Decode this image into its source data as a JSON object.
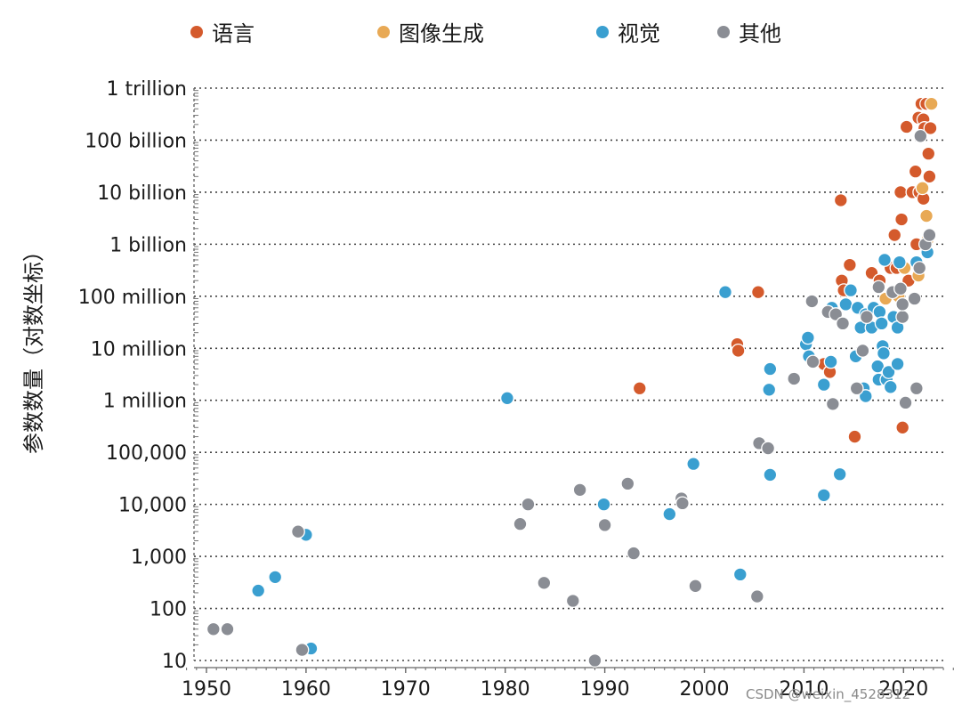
{
  "chart_data": {
    "type": "scatter",
    "title": "",
    "xlabel": "",
    "ylabel": "参数数量（对数坐标）",
    "x_scale": "linear",
    "y_scale": "log",
    "xlim": [
      1948,
      2025
    ],
    "ylim": [
      10,
      1000000000000
    ],
    "x_ticks": [
      1950,
      1960,
      1970,
      1980,
      1990,
      2000,
      2010,
      2020
    ],
    "x_tick_labels": [
      "1950",
      "1960",
      "1970",
      "1980",
      "1990",
      "2000",
      "2010",
      "2020"
    ],
    "y_ticks": [
      10,
      100,
      1000,
      10000,
      100000,
      1000000,
      10000000,
      100000000,
      1000000000,
      10000000000,
      100000000000,
      1000000000000
    ],
    "y_tick_labels": [
      "10",
      "100",
      "1,000",
      "10,000",
      "100,000",
      "1 million",
      "10 million",
      "100 million",
      "1 billion",
      "10 billion",
      "100 billion",
      "1 trillion"
    ],
    "grid": "horizontal-dotted",
    "legend_position": "top",
    "series": [
      {
        "name": "语言",
        "color": "#d45a2c",
        "points": [
          [
            1993.5,
            1700000
          ],
          [
            2003.3,
            12000000
          ],
          [
            2003.4,
            9000000
          ],
          [
            2005.4,
            120000000
          ],
          [
            2012,
            5000000
          ],
          [
            2012.6,
            3500000
          ],
          [
            2013.7,
            7000000000
          ],
          [
            2013.8,
            200000000
          ],
          [
            2014,
            130000000
          ],
          [
            2014.6,
            400000000
          ],
          [
            2015.1,
            200000
          ],
          [
            2016.8,
            280000000
          ],
          [
            2017.6,
            200000000
          ],
          [
            2018.7,
            350000000
          ],
          [
            2019.1,
            1500000000
          ],
          [
            2019.3,
            350000000
          ],
          [
            2019.7,
            10000000000
          ],
          [
            2019.8,
            3000000000
          ],
          [
            2019.9,
            300000
          ],
          [
            2020.3,
            180000000000
          ],
          [
            2020.5,
            200000000
          ],
          [
            2020.9,
            10000000000
          ],
          [
            2021.2,
            25000000000
          ],
          [
            2021.3,
            1000000000
          ],
          [
            2021.5,
            270000000000
          ],
          [
            2021.6,
            10000000000
          ],
          [
            2021.8,
            500000000000
          ],
          [
            2022,
            7500000000
          ],
          [
            2022,
            250000000000
          ],
          [
            2022.1,
            170000000000
          ],
          [
            2022.3,
            500000000000
          ],
          [
            2022.5,
            55000000000
          ],
          [
            2022.6,
            20000000000
          ],
          [
            2022.7,
            170000000000
          ]
        ]
      },
      {
        "name": "图像生成",
        "color": "#e8a955",
        "points": [
          [
            2018.2,
            90000000
          ],
          [
            2019.5,
            100000000
          ],
          [
            2020.1,
            350000000
          ],
          [
            2021.5,
            250000000
          ],
          [
            2021.9,
            12000000000
          ],
          [
            2022.3,
            3500000000
          ],
          [
            2022.4,
            1200000000
          ],
          [
            2022.8,
            500000000000
          ]
        ]
      },
      {
        "name": "视觉",
        "color": "#3a9fd0",
        "points": [
          [
            1955.2,
            220
          ],
          [
            1956.9,
            400
          ],
          [
            1960,
            2600
          ],
          [
            1960.5,
            17
          ],
          [
            1980.2,
            1100000
          ],
          [
            1989.9,
            10000
          ],
          [
            1996.5,
            6500
          ],
          [
            1998.9,
            60000
          ],
          [
            2002.1,
            120000000
          ],
          [
            2003.6,
            450
          ],
          [
            2006.5,
            1600000
          ],
          [
            2006.6,
            4000000
          ],
          [
            2006.6,
            37000
          ],
          [
            2010.2,
            12000000
          ],
          [
            2010.4,
            16000000
          ],
          [
            2010.5,
            7000000
          ],
          [
            2012,
            2000000
          ],
          [
            2012,
            15000
          ],
          [
            2012.7,
            5500000
          ],
          [
            2012.8,
            60000000
          ],
          [
            2013.6,
            38000
          ],
          [
            2014.2,
            70000000
          ],
          [
            2014.7,
            130000000
          ],
          [
            2015.2,
            7000000
          ],
          [
            2015.4,
            60000000
          ],
          [
            2015.7,
            25000000
          ],
          [
            2016,
            1700000
          ],
          [
            2016.2,
            1200000
          ],
          [
            2016.2,
            45000000
          ],
          [
            2016.8,
            25000000
          ],
          [
            2017,
            60000000
          ],
          [
            2017.4,
            4500000
          ],
          [
            2017.5,
            2500000
          ],
          [
            2017.6,
            50000000
          ],
          [
            2017.8,
            30000000
          ],
          [
            2017.9,
            11000000
          ],
          [
            2018,
            8000000
          ],
          [
            2018.1,
            500000000
          ],
          [
            2018.3,
            2500000
          ],
          [
            2018.5,
            3500000
          ],
          [
            2018.7,
            1800000
          ],
          [
            2019,
            40000000
          ],
          [
            2019.4,
            25000000
          ],
          [
            2019.4,
            5000000
          ],
          [
            2019.6,
            450000000
          ],
          [
            2021.3,
            450000000
          ],
          [
            2022.4,
            700000000
          ]
        ]
      },
      {
        "name": "其他",
        "color": "#8a8d94",
        "points": [
          [
            1950.7,
            40
          ],
          [
            1952.1,
            40
          ],
          [
            1959.2,
            3000
          ],
          [
            1959.6,
            16
          ],
          [
            1981.5,
            4200
          ],
          [
            1982.3,
            10000
          ],
          [
            1983.9,
            310
          ],
          [
            1986.8,
            140
          ],
          [
            1987.5,
            19000
          ],
          [
            1989,
            10
          ],
          [
            1990,
            4000
          ],
          [
            1992.3,
            25000
          ],
          [
            1992.9,
            1150
          ],
          [
            1997.7,
            13000
          ],
          [
            1997.8,
            10500
          ],
          [
            1999.1,
            270
          ],
          [
            2005.3,
            170
          ],
          [
            2005.5,
            150000
          ],
          [
            2006.4,
            120000
          ],
          [
            2009,
            2600000
          ],
          [
            2010.8,
            80000000
          ],
          [
            2010.9,
            5500000
          ],
          [
            2012.4,
            50000000
          ],
          [
            2012.9,
            850000
          ],
          [
            2013.2,
            45000000
          ],
          [
            2013.9,
            30000000
          ],
          [
            2015.3,
            1700000
          ],
          [
            2015.9,
            9000000
          ],
          [
            2016.3,
            40000000
          ],
          [
            2017.5,
            150000000
          ],
          [
            2018.9,
            120000000
          ],
          [
            2019.7,
            140000000
          ],
          [
            2019.9,
            40000000
          ],
          [
            2019.9,
            70000000
          ],
          [
            2020.2,
            900000
          ],
          [
            2021.1,
            90000000
          ],
          [
            2021.3,
            1700000
          ],
          [
            2021.6,
            350000000
          ],
          [
            2021.7,
            120000000000
          ],
          [
            2022.2,
            1000000000
          ],
          [
            2022.6,
            1500000000
          ]
        ]
      }
    ]
  },
  "watermark": "CSDN @weixin_4528312"
}
